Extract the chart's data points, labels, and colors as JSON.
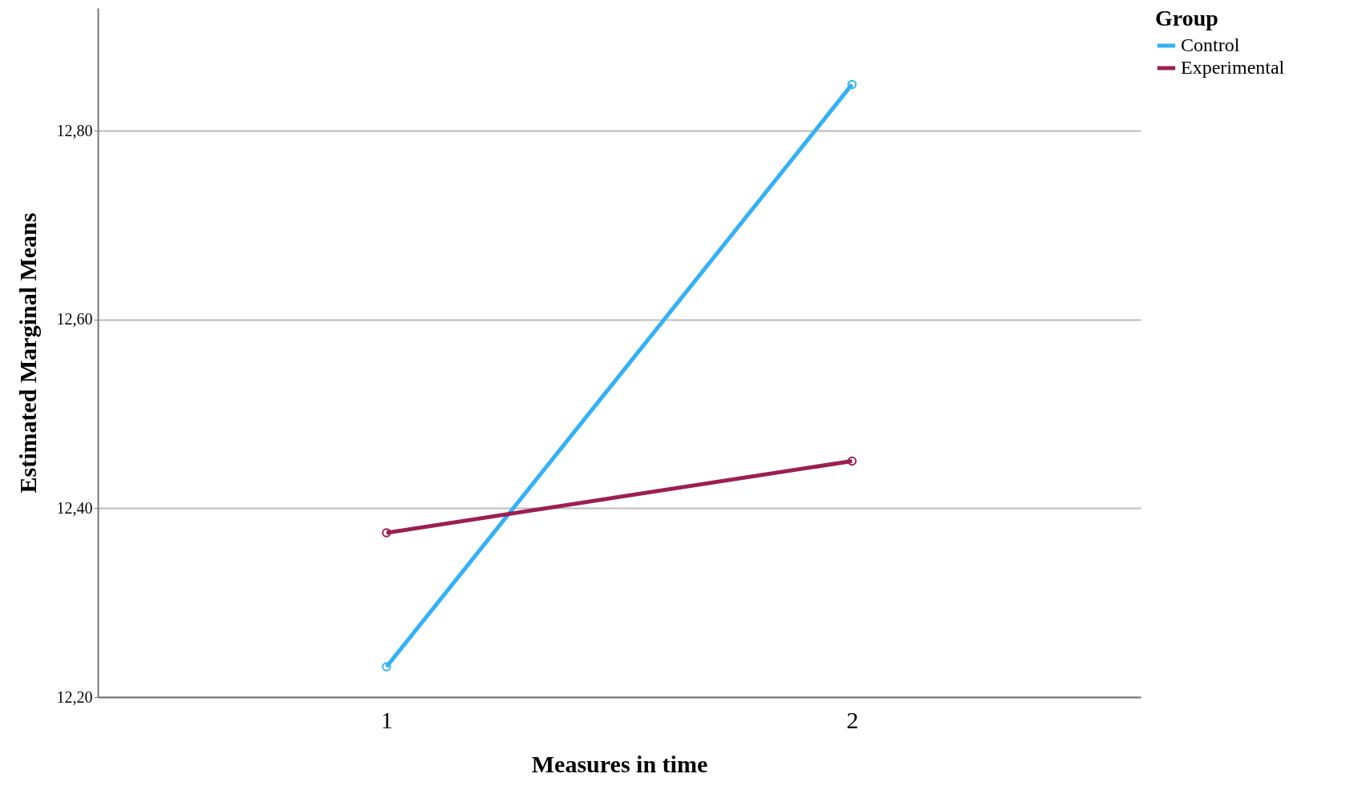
{
  "chart_data": {
    "type": "line",
    "xlabel": "Measures in time",
    "ylabel": "Estimated Marginal Means",
    "legend_title": "Group",
    "categories": [
      "1",
      "2"
    ],
    "series": [
      {
        "name": "Control",
        "color": "#33b1f4",
        "values": [
          12.232,
          12.849
        ]
      },
      {
        "name": "Experimental",
        "color": "#9c1f52",
        "values": [
          12.374,
          12.45
        ]
      }
    ],
    "ylim": [
      12.2,
      12.93
    ],
    "yticks": [
      {
        "value": 12.2,
        "label": "12,20"
      },
      {
        "value": 12.4,
        "label": "12,40"
      },
      {
        "value": 12.6,
        "label": "12,60"
      },
      {
        "value": 12.8,
        "label": "12,80"
      }
    ],
    "grid": "y",
    "legend": "top right",
    "marker": "circle"
  }
}
